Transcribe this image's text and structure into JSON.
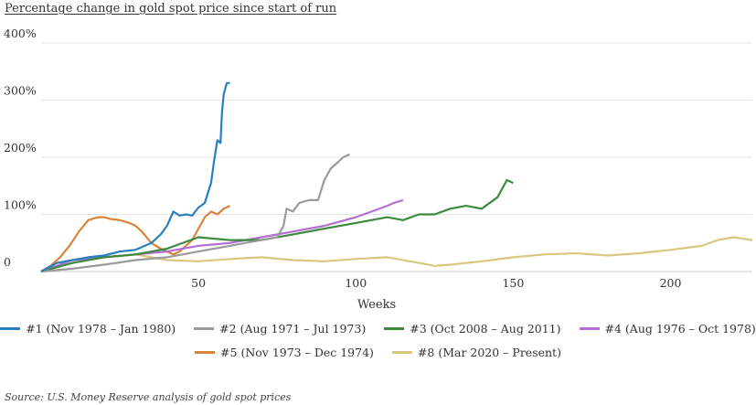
{
  "chart_data": {
    "type": "line",
    "title": "Percentage change in gold spot price since start of run",
    "xlabel": "Weeks",
    "ylabel": "",
    "xlim": [
      0,
      226
    ],
    "ylim": [
      0,
      400
    ],
    "x_ticks": [
      50,
      100,
      150,
      200
    ],
    "x_tick_labels": [
      "50",
      "100",
      "150",
      "200"
    ],
    "y_ticks": [
      0,
      100,
      200,
      300,
      400
    ],
    "y_tick_labels": [
      "0",
      "100%",
      "200%",
      "300%",
      "400%"
    ],
    "grid": "horizontal",
    "legend_position": "bottom",
    "series": [
      {
        "name": "#1 (Nov 1978 – Jan 1980)",
        "color": "#2a7fbf",
        "x": [
          0,
          5,
          10,
          15,
          20,
          25,
          30,
          35,
          38,
          40,
          42,
          44,
          46,
          48,
          50,
          52,
          54,
          55,
          56,
          57,
          57.5,
          58,
          59,
          60
        ],
        "y": [
          0,
          15,
          20,
          25,
          28,
          35,
          38,
          50,
          65,
          80,
          105,
          98,
          100,
          98,
          112,
          120,
          155,
          195,
          230,
          225,
          280,
          310,
          330,
          330
        ]
      },
      {
        "name": "#2 (Aug 1971 – Jul 1973)",
        "color": "#9a9a9a",
        "x": [
          0,
          10,
          20,
          30,
          40,
          50,
          60,
          70,
          75,
          77,
          78,
          80,
          82,
          85,
          88,
          90,
          92,
          94,
          96,
          98
        ],
        "y": [
          0,
          5,
          12,
          20,
          25,
          35,
          45,
          55,
          60,
          80,
          110,
          105,
          120,
          125,
          125,
          160,
          180,
          190,
          200,
          205
        ]
      },
      {
        "name": "#3 (Oct 2008 – Aug 2011)",
        "color": "#3d8a3d",
        "x": [
          0,
          10,
          20,
          30,
          40,
          50,
          60,
          70,
          80,
          90,
          100,
          110,
          115,
          120,
          125,
          130,
          135,
          140,
          145,
          148,
          150
        ],
        "y": [
          0,
          15,
          25,
          30,
          40,
          60,
          55,
          55,
          65,
          75,
          85,
          95,
          90,
          100,
          100,
          110,
          115,
          110,
          130,
          160,
          155
        ]
      },
      {
        "name": "#4 (Aug 1976 – Oct 1978)",
        "color": "#b46fd4",
        "x": [
          0,
          10,
          20,
          30,
          40,
          50,
          60,
          70,
          80,
          90,
          100,
          105,
          110,
          112,
          115
        ],
        "y": [
          0,
          20,
          25,
          30,
          35,
          45,
          50,
          60,
          70,
          80,
          95,
          105,
          115,
          120,
          125
        ]
      },
      {
        "name": "#5 (Nov 1973 – Dec 1974)",
        "color": "#d9843a",
        "x": [
          0,
          3,
          6,
          9,
          12,
          15,
          18,
          20,
          22,
          25,
          28,
          30,
          32,
          35,
          38,
          40,
          42,
          44,
          46,
          48,
          50,
          52,
          54,
          56,
          58,
          60
        ],
        "y": [
          0,
          10,
          25,
          45,
          70,
          90,
          95,
          95,
          92,
          90,
          85,
          80,
          70,
          50,
          40,
          35,
          30,
          35,
          45,
          55,
          75,
          95,
          105,
          100,
          110,
          115
        ]
      },
      {
        "name": "#8 (Mar 2020 – Present)",
        "color": "#d8c77e",
        "x": [
          0,
          10,
          20,
          30,
          40,
          50,
          60,
          70,
          80,
          90,
          100,
          110,
          120,
          125,
          130,
          140,
          150,
          160,
          170,
          180,
          190,
          200,
          210,
          215,
          220,
          226
        ],
        "y": [
          0,
          15,
          25,
          30,
          20,
          18,
          22,
          25,
          20,
          18,
          22,
          25,
          15,
          10,
          12,
          18,
          25,
          30,
          32,
          28,
          32,
          38,
          45,
          55,
          60,
          55
        ]
      }
    ]
  },
  "source": "Source: U.S. Money Reserve analysis of gold spot prices"
}
